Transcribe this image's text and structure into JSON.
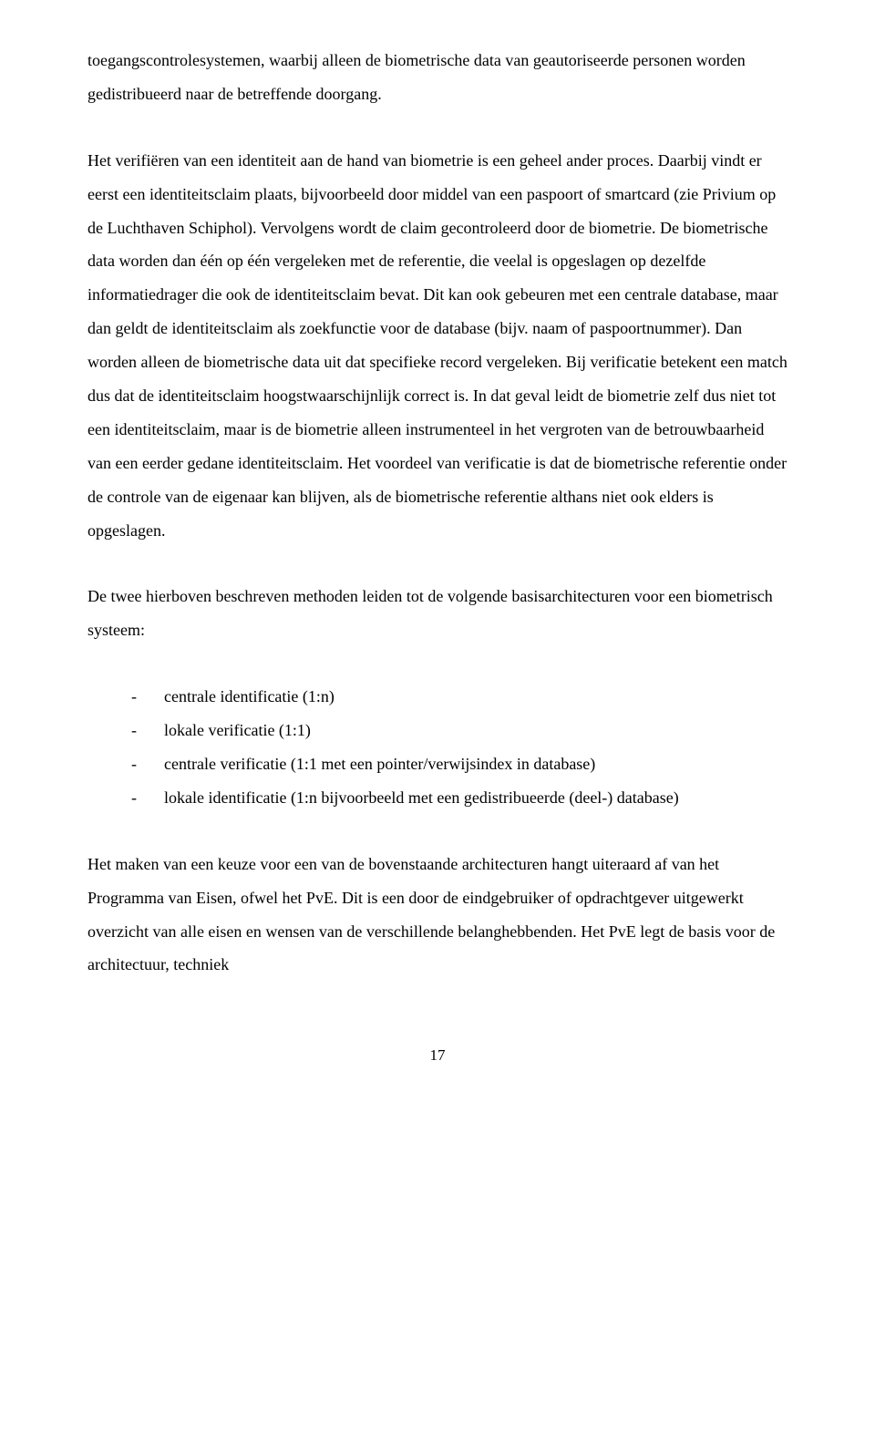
{
  "paragraphs": {
    "p1": "toegangscontrolesystemen, waarbij alleen de biometrische data van geautoriseerde personen worden gedistribueerd naar de betreffende doorgang.",
    "p2": "Het verifiëren van een identiteit aan de hand van biometrie is een geheel ander proces. Daarbij vindt er eerst een identiteitsclaim plaats, bijvoorbeeld door middel van een paspoort of smartcard (zie Privium op de Luchthaven Schiphol). Vervolgens wordt de claim gecontroleerd door de biometrie. De biometrische data worden dan één op één vergeleken met de referentie, die veelal is opgeslagen op dezelfde informatiedrager die ook de identiteitsclaim bevat. Dit kan ook gebeuren met een centrale database, maar dan geldt de identiteitsclaim als zoekfunctie voor de database (bijv. naam of paspoortnummer). Dan worden alleen de biometrische data uit dat specifieke record vergeleken. Bij verificatie betekent een match dus dat de identiteitsclaim hoogstwaarschijnlijk correct is. In dat geval leidt de biometrie zelf dus niet tot een identiteitsclaim, maar is de biometrie alleen instrumenteel in het vergroten van de betrouwbaarheid van een eerder gedane identiteitsclaim. Het voordeel van verificatie is dat de biometrische referentie onder de controle van de eigenaar kan blijven, als de biometrische referentie althans niet ook elders is opgeslagen.",
    "p3": "De twee hierboven beschreven methoden leiden tot de volgende basisarchitecturen voor een biometrisch systeem:",
    "p4": "Het maken van een keuze voor een van de bovenstaande architecturen hangt uiteraard af van het Programma van Eisen, ofwel het PvE. Dit is een door de eindgebruiker of opdrachtgever uitgewerkt overzicht van alle eisen en wensen van de verschillende belanghebbenden. Het PvE legt de basis voor de architectuur, techniek"
  },
  "list": {
    "items": [
      "centrale identificatie (1:n)",
      "lokale verificatie (1:1)",
      "centrale verificatie (1:1 met een pointer/verwijsindex in database)",
      "lokale identificatie (1:n bijvoorbeeld met een gedistribueerde (deel-) database)"
    ],
    "dash": "-"
  },
  "page_number": "17"
}
